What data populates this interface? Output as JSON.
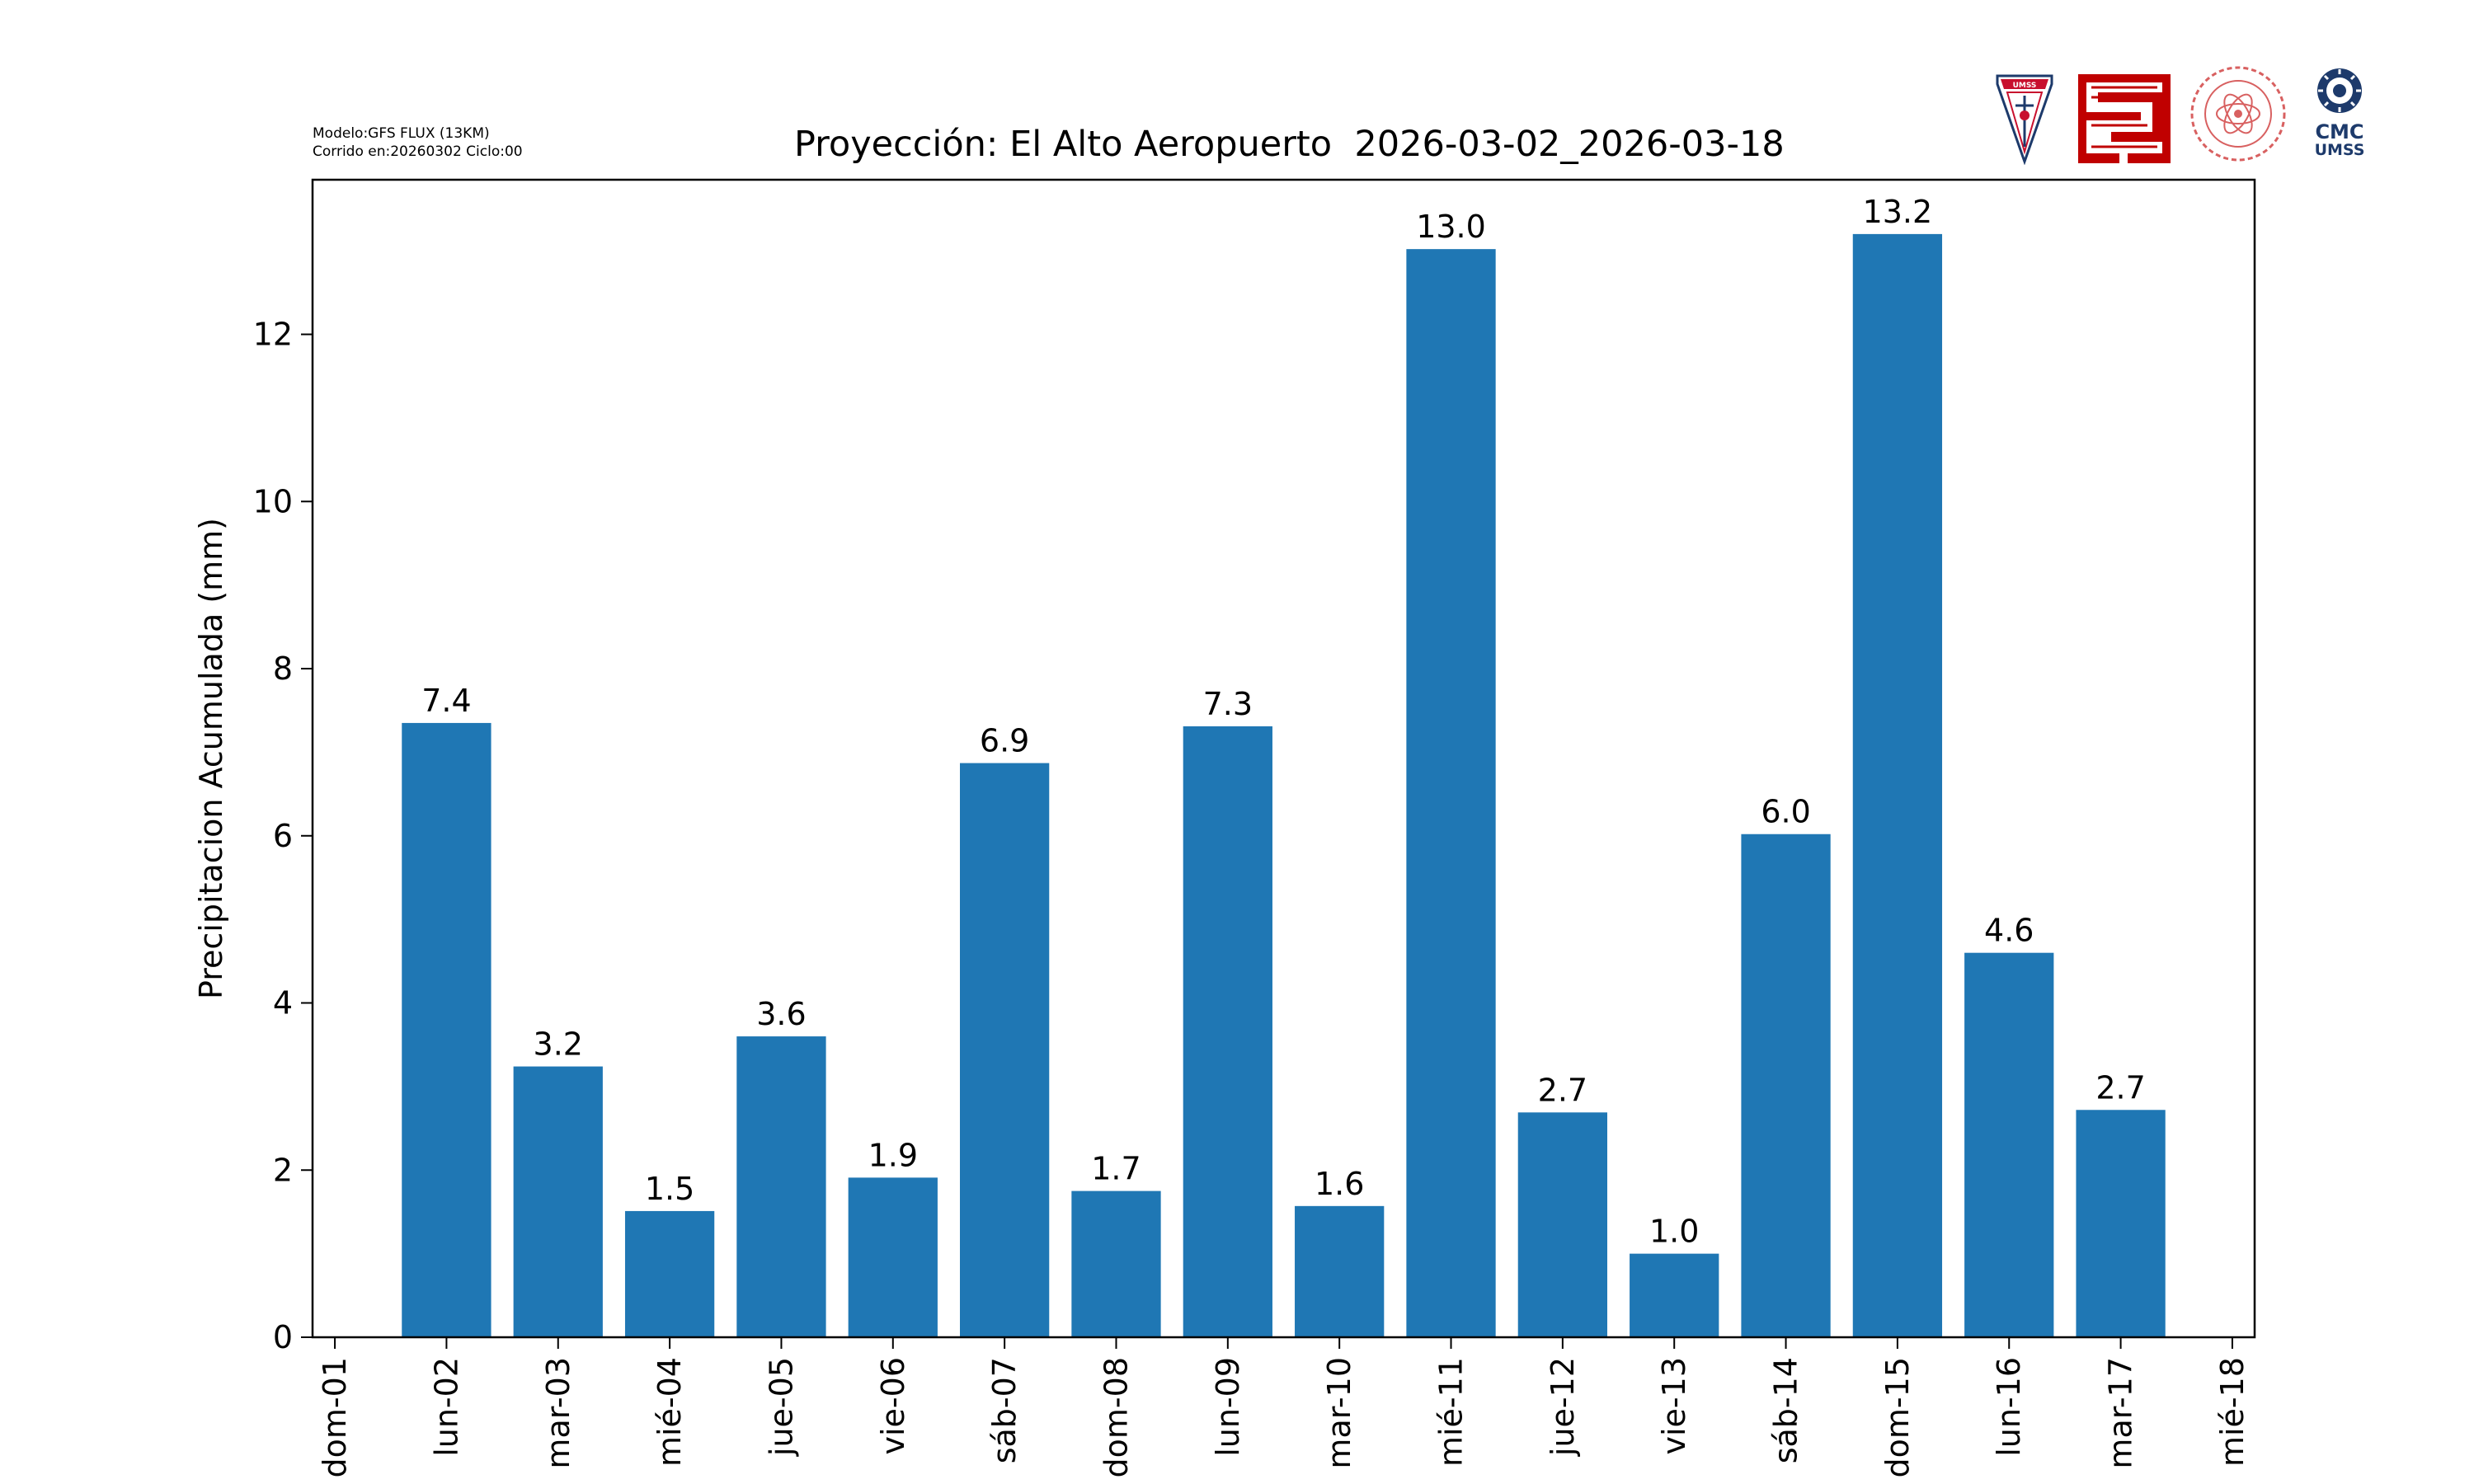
{
  "header": {
    "model_line": "Modelo:GFS FLUX (13KM)",
    "run_line": "Corrido en:20260302 Ciclo:00",
    "title": "Proyección: El Alto Aeropuerto  2026-03-02_2026-03-18"
  },
  "logos": {
    "umss_shield_text": "UMSS",
    "cmc_text": "CMC",
    "cmc_sub": "UMSS"
  },
  "colors": {
    "bar": "#1f77b4",
    "axis": "#000000"
  },
  "chart_data": {
    "type": "bar",
    "title": "Proyección: El Alto Aeropuerto  2026-03-02_2026-03-18",
    "xlabel": "",
    "ylabel": "Precipitacion Acumulada (mm)",
    "ylim": [
      0,
      13.85
    ],
    "yticks": [
      0,
      2,
      4,
      6,
      8,
      10,
      12
    ],
    "xlim": [
      0.8,
      18.2
    ],
    "x_ticks": [
      {
        "pos": 1,
        "label": "dom-01"
      },
      {
        "pos": 2,
        "label": "lun-02"
      },
      {
        "pos": 3,
        "label": "mar-03"
      },
      {
        "pos": 4,
        "label": "mié-04"
      },
      {
        "pos": 5,
        "label": "jue-05"
      },
      {
        "pos": 6,
        "label": "vie-06"
      },
      {
        "pos": 7,
        "label": "sáb-07"
      },
      {
        "pos": 8,
        "label": "dom-08"
      },
      {
        "pos": 9,
        "label": "lun-09"
      },
      {
        "pos": 10,
        "label": "mar-10"
      },
      {
        "pos": 11,
        "label": "mié-11"
      },
      {
        "pos": 12,
        "label": "jue-12"
      },
      {
        "pos": 13,
        "label": "vie-13"
      },
      {
        "pos": 14,
        "label": "sáb-14"
      },
      {
        "pos": 15,
        "label": "dom-15"
      },
      {
        "pos": 16,
        "label": "lun-16"
      },
      {
        "pos": 17,
        "label": "mar-17"
      },
      {
        "pos": 18,
        "label": "mié-18"
      }
    ],
    "bars": [
      {
        "pos": 2,
        "value": 7.35,
        "label": "7.4"
      },
      {
        "pos": 3,
        "value": 3.24,
        "label": "3.2"
      },
      {
        "pos": 4,
        "value": 1.51,
        "label": "1.5"
      },
      {
        "pos": 5,
        "value": 3.6,
        "label": "3.6"
      },
      {
        "pos": 6,
        "value": 1.91,
        "label": "1.9"
      },
      {
        "pos": 7,
        "value": 6.87,
        "label": "6.9"
      },
      {
        "pos": 8,
        "value": 1.75,
        "label": "1.7"
      },
      {
        "pos": 9,
        "value": 7.31,
        "label": "7.3"
      },
      {
        "pos": 10,
        "value": 1.57,
        "label": "1.6"
      },
      {
        "pos": 11,
        "value": 13.02,
        "label": "13.0"
      },
      {
        "pos": 12,
        "value": 2.69,
        "label": "2.7"
      },
      {
        "pos": 13,
        "value": 1.0,
        "label": "1.0"
      },
      {
        "pos": 14,
        "value": 6.02,
        "label": "6.0"
      },
      {
        "pos": 15,
        "value": 13.2,
        "label": "13.2"
      },
      {
        "pos": 16,
        "value": 4.6,
        "label": "4.6"
      },
      {
        "pos": 17,
        "value": 2.72,
        "label": "2.7"
      }
    ]
  }
}
